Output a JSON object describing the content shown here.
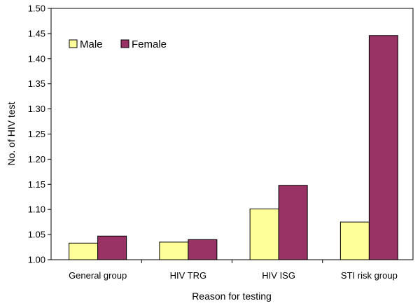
{
  "chart_data": {
    "type": "bar",
    "title": "",
    "xlabel": "Reason for testing",
    "ylabel": "No. of HIV test",
    "categories": [
      "General group",
      "HIV TRG",
      "HIV ISG",
      "STI risk group"
    ],
    "series": [
      {
        "name": "Male",
        "color": "#ffff99",
        "values": [
          1.033,
          1.035,
          1.101,
          1.075
        ]
      },
      {
        "name": "Female",
        "color": "#993366",
        "values": [
          1.047,
          1.04,
          1.148,
          1.446
        ]
      }
    ],
    "ylim": [
      1.0,
      1.5
    ],
    "yticks": [
      "1.00",
      "1.05",
      "1.10",
      "1.15",
      "1.20",
      "1.25",
      "1.30",
      "1.35",
      "1.40",
      "1.45",
      "1.50"
    ],
    "grid": false,
    "legend": "top-left"
  }
}
